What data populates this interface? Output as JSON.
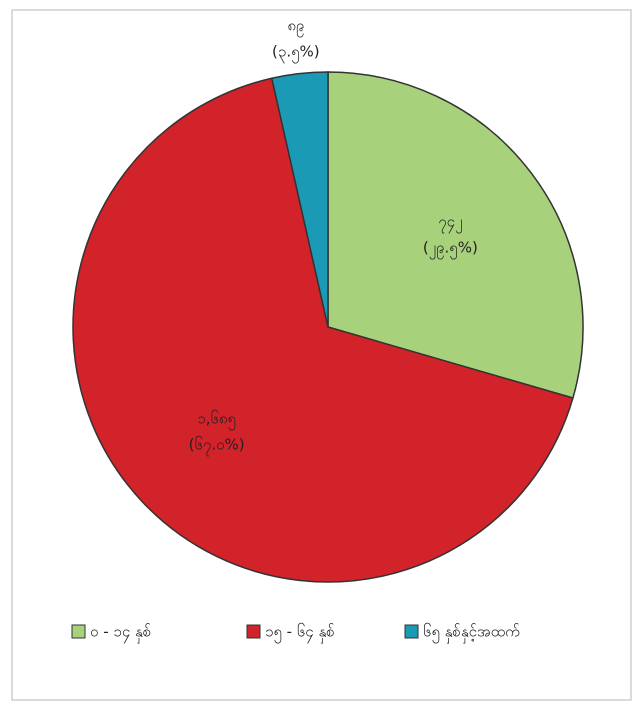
{
  "chart_data": {
    "type": "pie",
    "categories": [
      "၀ - ၁၄ နှစ်",
      "၁၅ - ၆၄ နှစ်",
      "၆၅ နှစ်နှင့်အထက်"
    ],
    "values": [
      742,
      1685,
      89
    ],
    "value_labels": [
      "၇၄၂",
      "၁,၆၈၅",
      "၈၉"
    ],
    "percent_labels": [
      "(၂၉.၅%)",
      "(၆၇.၀%)",
      "(၃.၅%)"
    ],
    "colors": [
      "#a8d17c",
      "#d2232a",
      "#1b9ab6"
    ],
    "legend": "bottom"
  }
}
